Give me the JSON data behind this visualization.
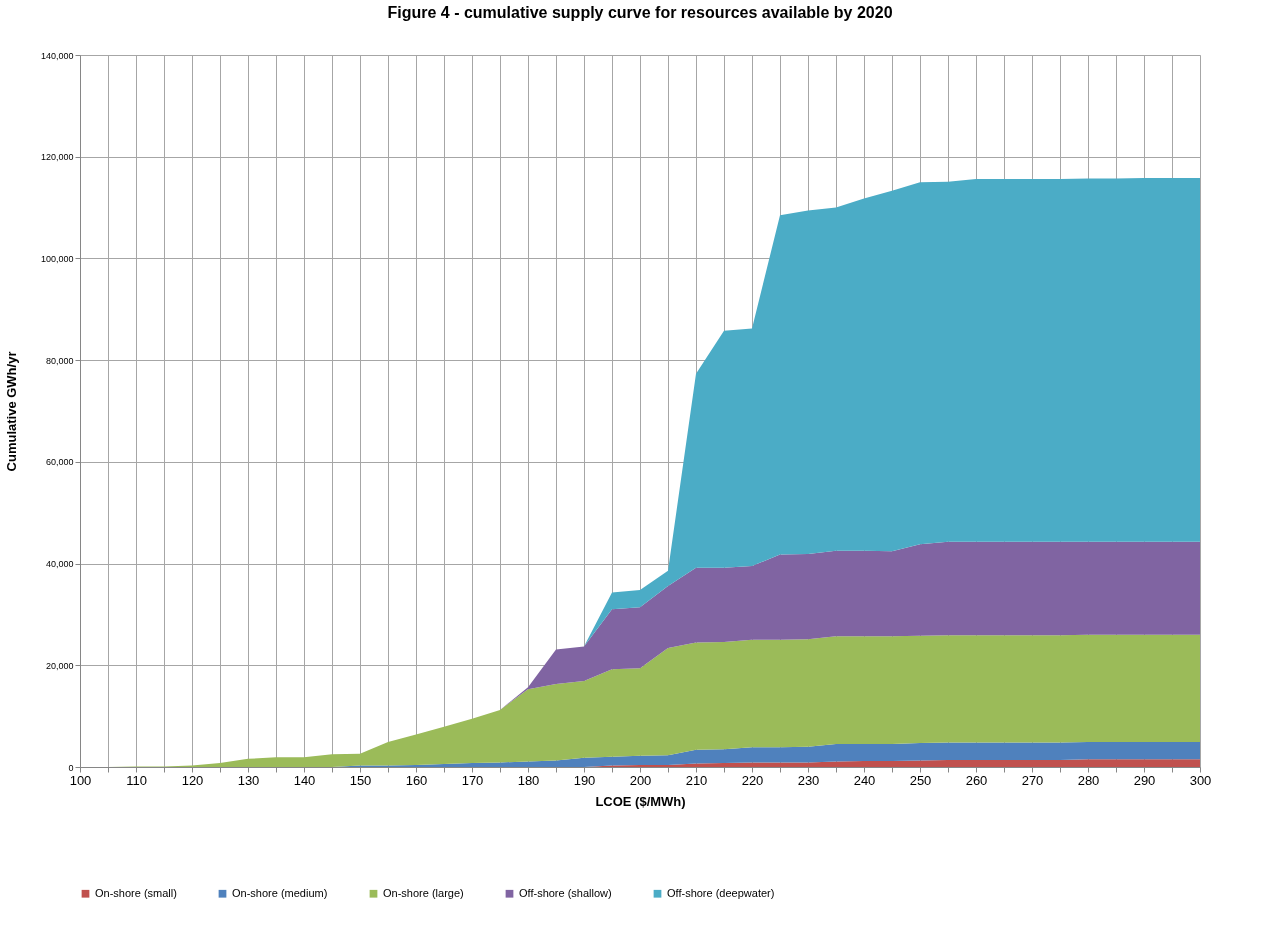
{
  "chart_data": {
    "type": "area",
    "stacked": true,
    "title": "Figure 4 - cumulative supply curve for resources available by 2020",
    "xlabel": "LCOE ($/MWh)",
    "ylabel": "Cumulative GWh/yr",
    "x": [
      100,
      105,
      110,
      115,
      120,
      125,
      130,
      135,
      140,
      145,
      150,
      155,
      160,
      165,
      170,
      175,
      180,
      185,
      190,
      195,
      200,
      205,
      210,
      215,
      220,
      225,
      230,
      235,
      240,
      245,
      250,
      255,
      260,
      265,
      270,
      275,
      280,
      285,
      290,
      295,
      300
    ],
    "series": [
      {
        "name": "On-shore (small)",
        "color": "#c0504d",
        "values": [
          0,
          0,
          0,
          0,
          0,
          0,
          0,
          0,
          0,
          0,
          0,
          0,
          0,
          0,
          0,
          0,
          0,
          0,
          0,
          300,
          400,
          400,
          700,
          800,
          900,
          900,
          900,
          1100,
          1200,
          1200,
          1300,
          1400,
          1400,
          1400,
          1400,
          1400,
          1500,
          1500,
          1500,
          1500,
          1500
        ]
      },
      {
        "name": "On-shore (medium)",
        "color": "#4f81bd",
        "values": [
          0,
          0,
          0,
          0,
          0,
          0,
          0,
          0,
          0,
          0,
          300,
          300,
          400,
          600,
          800,
          900,
          1100,
          1300,
          1800,
          1700,
          1800,
          1900,
          2700,
          2700,
          3000,
          3000,
          3100,
          3400,
          3300,
          3300,
          3400,
          3400,
          3400,
          3400,
          3400,
          3400,
          3400,
          3400,
          3400,
          3400,
          3400
        ]
      },
      {
        "name": "On-shore (large)",
        "color": "#9bbb59",
        "values": [
          0,
          0,
          100,
          100,
          300,
          800,
          1600,
          1900,
          1900,
          2500,
          2300,
          4600,
          6000,
          7300,
          8700,
          10300,
          14200,
          15000,
          15100,
          17200,
          17200,
          21100,
          21100,
          21100,
          21100,
          21100,
          21100,
          21200,
          21200,
          21200,
          21100,
          21100,
          21100,
          21100,
          21100,
          21100,
          21100,
          21100,
          21100,
          21100,
          21100
        ]
      },
      {
        "name": "Off-shore (shallow)",
        "color": "#8064a2",
        "values": [
          0,
          0,
          0,
          0,
          0,
          0,
          0,
          0,
          0,
          0,
          0,
          0,
          0,
          0,
          0,
          0,
          400,
          6800,
          6800,
          11800,
          12000,
          12200,
          14700,
          14600,
          14500,
          16800,
          16800,
          16800,
          16800,
          16700,
          18000,
          18400,
          18400,
          18400,
          18400,
          18400,
          18300,
          18300,
          18300,
          18300,
          18300
        ]
      },
      {
        "name": "Off-shore (deepwater)",
        "color": "#4bacc6",
        "values": [
          0,
          0,
          0,
          0,
          0,
          0,
          0,
          0,
          0,
          0,
          0,
          0,
          0,
          0,
          0,
          0,
          0,
          0,
          0,
          3300,
          3400,
          3000,
          38100,
          46600,
          46700,
          66700,
          67500,
          67500,
          69300,
          70900,
          71200,
          70800,
          71300,
          71300,
          71300,
          71300,
          71400,
          71400,
          71500,
          71500,
          71500
        ]
      }
    ],
    "xlim": [
      100,
      300
    ],
    "xticks": [
      100,
      {
        "value": 105,
        "label": null
      },
      110,
      {
        "value": 115,
        "label": null
      },
      120,
      {
        "value": 125,
        "label": null
      },
      130,
      {
        "value": 135,
        "label": null
      },
      140,
      {
        "value": 145,
        "label": null
      },
      150,
      {
        "value": 155,
        "label": null
      },
      160,
      {
        "value": 165,
        "label": null
      },
      170,
      {
        "value": 175,
        "label": null
      },
      180,
      {
        "value": 185,
        "label": null
      },
      190,
      {
        "value": 195,
        "label": null
      },
      200,
      {
        "value": 205,
        "label": null
      },
      210,
      {
        "value": 215,
        "label": null
      },
      220,
      {
        "value": 225,
        "label": null
      },
      230,
      {
        "value": 235,
        "label": null
      },
      240,
      {
        "value": 245,
        "label": null
      },
      250,
      {
        "value": 255,
        "label": null
      },
      260,
      {
        "value": 265,
        "label": null
      },
      270,
      {
        "value": 275,
        "label": null
      },
      280,
      {
        "value": 285,
        "label": null
      },
      290,
      {
        "value": 295,
        "label": null
      },
      300
    ],
    "ylim": [
      0,
      140000
    ],
    "yticks": [
      0,
      {
        "value": 20000,
        "label": "20,000"
      },
      {
        "value": 40000,
        "label": "40,000"
      },
      {
        "value": 60000,
        "label": "60,000"
      },
      {
        "value": 80000,
        "label": "80,000"
      },
      {
        "value": 100000,
        "label": "100,000"
      },
      {
        "value": 120000,
        "label": "120,000"
      },
      {
        "value": 140000,
        "label": "140,000"
      }
    ],
    "grid": true,
    "legend": "bottom"
  }
}
